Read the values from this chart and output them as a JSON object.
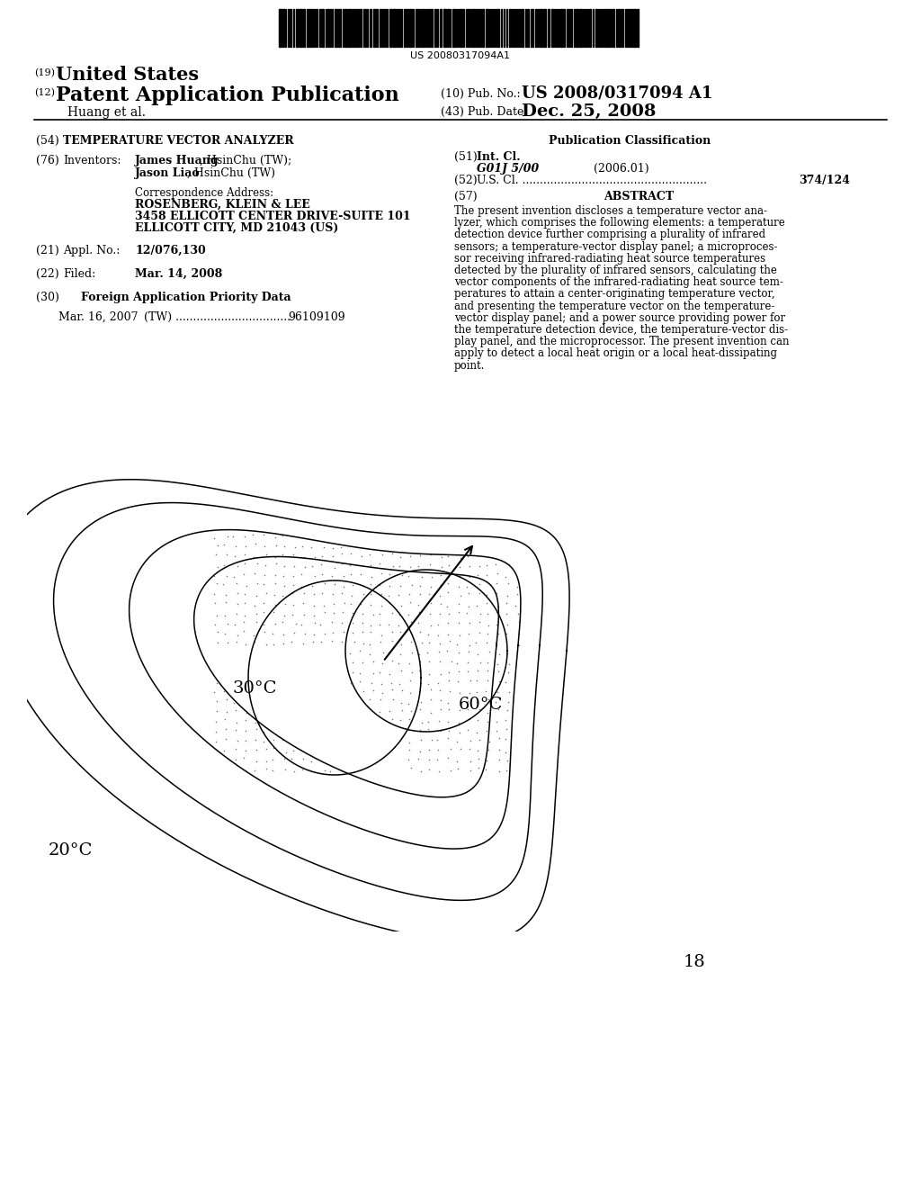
{
  "barcode_text": "US 20080317094A1",
  "background_color": "#ffffff",
  "text_color": "#000000",
  "label_20C": "20°C",
  "label_30C": "30°C",
  "label_60C": "60°C",
  "fig_number": "18"
}
